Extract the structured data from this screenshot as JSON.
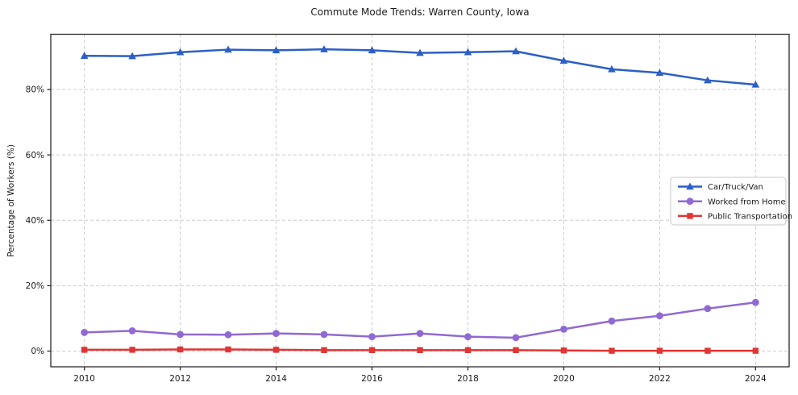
{
  "figure": {
    "title": "Commute Mode Trends: Warren County, Iowa",
    "ylabel": "Percentage of Workers (%)"
  },
  "chart_data": {
    "type": "line",
    "title": "Commute Mode Trends: Warren County, Iowa",
    "xlabel": "",
    "ylabel": "Percentage of Workers (%)",
    "x": [
      2010,
      2011,
      2012,
      2013,
      2014,
      2015,
      2016,
      2017,
      2018,
      2019,
      2020,
      2021,
      2022,
      2023,
      2024
    ],
    "series": [
      {
        "name": "Car/Truck/Van",
        "color": "#2c5fc6",
        "marker": "triangle",
        "values": [
          90.3,
          90.2,
          91.4,
          92.2,
          92.0,
          92.3,
          92.0,
          91.2,
          91.4,
          91.7,
          88.8,
          86.2,
          85.1,
          82.8,
          81.5
        ]
      },
      {
        "name": "Worked from Home",
        "color": "#9169d2",
        "marker": "circle",
        "values": [
          5.7,
          6.2,
          5.1,
          5.0,
          5.4,
          5.1,
          4.4,
          5.4,
          4.4,
          4.1,
          6.7,
          9.2,
          10.8,
          13.0,
          14.9
        ]
      },
      {
        "name": "Public Transportation",
        "color": "#e13434",
        "marker": "square",
        "values": [
          0.4,
          0.4,
          0.5,
          0.5,
          0.4,
          0.3,
          0.3,
          0.3,
          0.3,
          0.3,
          0.2,
          0.1,
          0.1,
          0.1,
          0.1
        ]
      }
    ],
    "xticks": [
      2010,
      2012,
      2014,
      2016,
      2018,
      2020,
      2022,
      2024
    ],
    "xtick_labels": [
      "2010",
      "2012",
      "2014",
      "2016",
      "2018",
      "2020",
      "2022",
      "2024"
    ],
    "yticks": [
      0,
      20,
      40,
      60,
      80
    ],
    "ytick_labels": [
      "0%",
      "20%",
      "40%",
      "60%",
      "80%"
    ],
    "xlim": [
      2009.3,
      2024.7
    ],
    "ylim": [
      -4.8,
      96.9
    ],
    "grid": "dashed",
    "grid_color": "#cccccc",
    "spine_color": "#2a2a2a",
    "background_color": "#ffffff",
    "legend_position": "center-right"
  }
}
